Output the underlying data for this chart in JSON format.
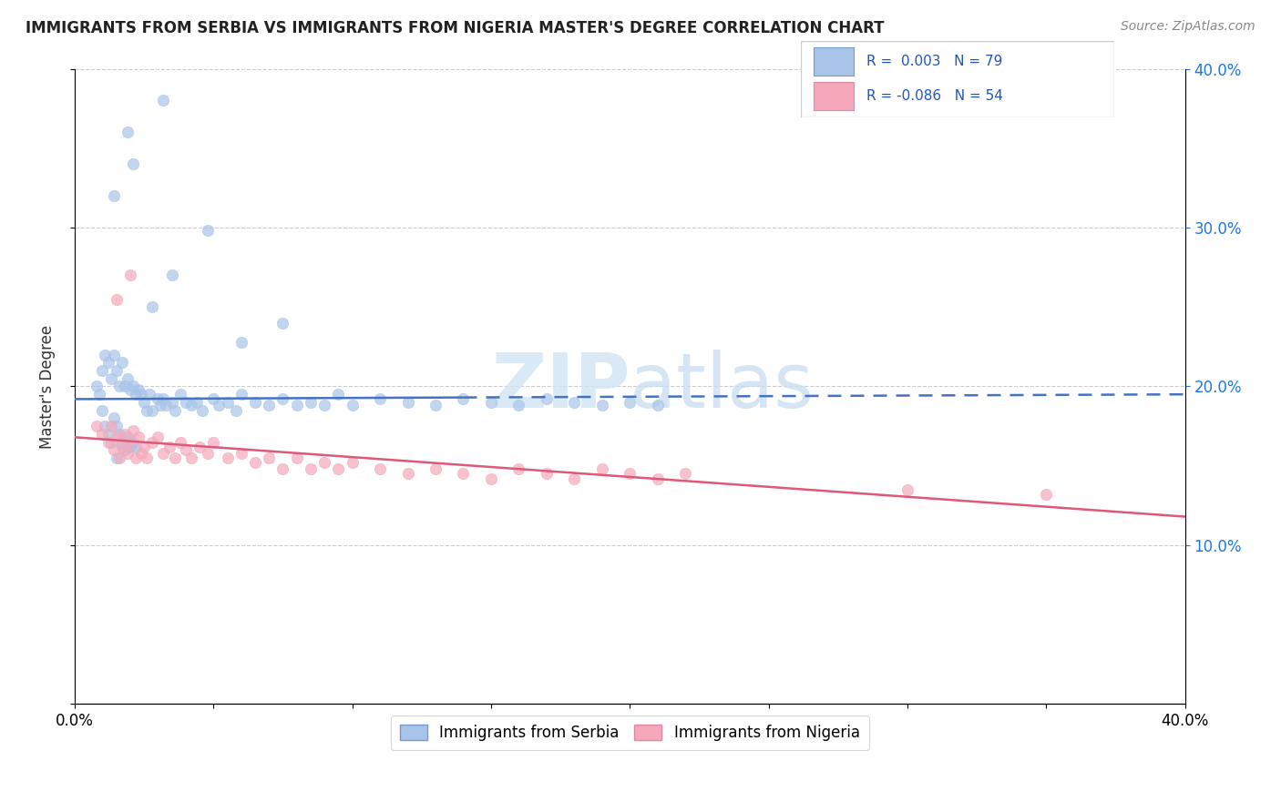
{
  "title": "IMMIGRANTS FROM SERBIA VS IMMIGRANTS FROM NIGERIA MASTER'S DEGREE CORRELATION CHART",
  "source_text": "Source: ZipAtlas.com",
  "ylabel": "Master's Degree",
  "xlim": [
    0.0,
    0.4
  ],
  "ylim": [
    0.0,
    0.4
  ],
  "serbia_R": "0.003",
  "serbia_N": "79",
  "nigeria_R": "-0.086",
  "nigeria_N": "54",
  "serbia_color": "#a8c4e8",
  "nigeria_color": "#f4a8ba",
  "serbia_line_color": "#4472c4",
  "nigeria_line_color": "#e05878",
  "watermark_color": "#d0e4f4",
  "serbia_x": [
    0.008,
    0.009,
    0.01,
    0.01,
    0.011,
    0.011,
    0.012,
    0.012,
    0.013,
    0.013,
    0.014,
    0.014,
    0.015,
    0.015,
    0.015,
    0.016,
    0.016,
    0.017,
    0.017,
    0.018,
    0.018,
    0.019,
    0.019,
    0.02,
    0.02,
    0.021,
    0.021,
    0.022,
    0.022,
    0.023,
    0.024,
    0.025,
    0.026,
    0.027,
    0.028,
    0.03,
    0.031,
    0.032,
    0.033,
    0.035,
    0.036,
    0.038,
    0.04,
    0.042,
    0.044,
    0.046,
    0.05,
    0.052,
    0.055,
    0.058,
    0.06,
    0.065,
    0.07,
    0.075,
    0.08,
    0.085,
    0.09,
    0.095,
    0.1,
    0.11,
    0.12,
    0.13,
    0.14,
    0.15,
    0.16,
    0.17,
    0.18,
    0.19,
    0.2,
    0.21,
    0.028,
    0.035,
    0.048,
    0.06,
    0.075,
    0.032,
    0.019,
    0.021,
    0.014
  ],
  "serbia_y": [
    0.2,
    0.195,
    0.21,
    0.185,
    0.22,
    0.175,
    0.215,
    0.17,
    0.205,
    0.165,
    0.22,
    0.18,
    0.21,
    0.175,
    0.155,
    0.2,
    0.17,
    0.215,
    0.165,
    0.2,
    0.16,
    0.205,
    0.168,
    0.198,
    0.162,
    0.2,
    0.165,
    0.195,
    0.162,
    0.198,
    0.195,
    0.19,
    0.185,
    0.195,
    0.185,
    0.192,
    0.188,
    0.192,
    0.188,
    0.19,
    0.185,
    0.195,
    0.19,
    0.188,
    0.19,
    0.185,
    0.192,
    0.188,
    0.19,
    0.185,
    0.195,
    0.19,
    0.188,
    0.192,
    0.188,
    0.19,
    0.188,
    0.195,
    0.188,
    0.192,
    0.19,
    0.188,
    0.192,
    0.19,
    0.188,
    0.192,
    0.19,
    0.188,
    0.19,
    0.188,
    0.25,
    0.27,
    0.298,
    0.228,
    0.24,
    0.38,
    0.36,
    0.34,
    0.32
  ],
  "nigeria_x": [
    0.008,
    0.01,
    0.012,
    0.013,
    0.014,
    0.015,
    0.016,
    0.017,
    0.018,
    0.019,
    0.02,
    0.021,
    0.022,
    0.023,
    0.024,
    0.025,
    0.026,
    0.028,
    0.03,
    0.032,
    0.034,
    0.036,
    0.038,
    0.04,
    0.042,
    0.045,
    0.048,
    0.05,
    0.055,
    0.06,
    0.065,
    0.07,
    0.075,
    0.08,
    0.085,
    0.09,
    0.095,
    0.1,
    0.11,
    0.12,
    0.13,
    0.14,
    0.15,
    0.16,
    0.17,
    0.18,
    0.19,
    0.2,
    0.21,
    0.22,
    0.3,
    0.35,
    0.02,
    0.015
  ],
  "nigeria_y": [
    0.175,
    0.17,
    0.165,
    0.175,
    0.16,
    0.168,
    0.155,
    0.162,
    0.17,
    0.158,
    0.165,
    0.172,
    0.155,
    0.168,
    0.158,
    0.162,
    0.155,
    0.165,
    0.168,
    0.158,
    0.162,
    0.155,
    0.165,
    0.16,
    0.155,
    0.162,
    0.158,
    0.165,
    0.155,
    0.158,
    0.152,
    0.155,
    0.148,
    0.155,
    0.148,
    0.152,
    0.148,
    0.152,
    0.148,
    0.145,
    0.148,
    0.145,
    0.142,
    0.148,
    0.145,
    0.142,
    0.148,
    0.145,
    0.142,
    0.145,
    0.135,
    0.132,
    0.27,
    0.255
  ]
}
